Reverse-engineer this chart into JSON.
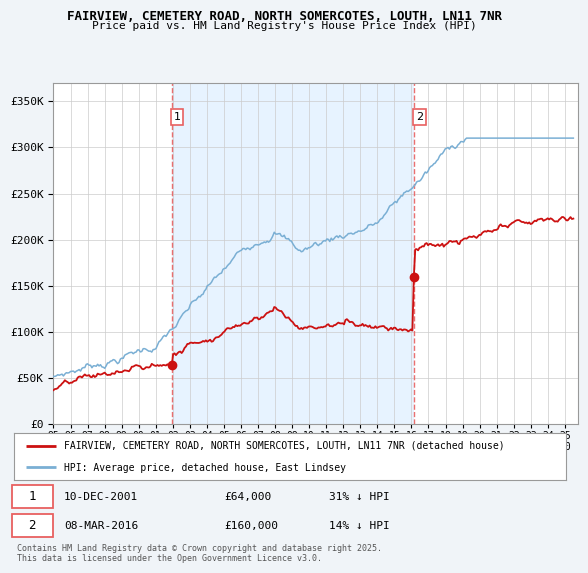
{
  "title1": "FAIRVIEW, CEMETERY ROAD, NORTH SOMERCOTES, LOUTH, LN11 7NR",
  "title2": "Price paid vs. HM Land Registry's House Price Index (HPI)",
  "ylabel_ticks": [
    "£0",
    "£50K",
    "£100K",
    "£150K",
    "£200K",
    "£250K",
    "£300K",
    "£350K"
  ],
  "ytick_values": [
    0,
    50000,
    100000,
    150000,
    200000,
    250000,
    300000,
    350000
  ],
  "ylim": [
    0,
    370000
  ],
  "xlim_start": 1995.0,
  "xlim_end": 2025.8,
  "marker1_x": 2001.94,
  "marker1_y": 64000,
  "marker2_x": 2016.18,
  "marker2_y": 160000,
  "marker1_date": "10-DEC-2001",
  "marker1_price": "£64,000",
  "marker1_hpi": "31% ↓ HPI",
  "marker2_date": "08-MAR-2016",
  "marker2_price": "£160,000",
  "marker2_hpi": "14% ↓ HPI",
  "hpi_color": "#7aafd4",
  "price_color": "#cc1111",
  "dashed_color": "#e86060",
  "shade_color": "#ddeeff",
  "legend_label1": "FAIRVIEW, CEMETERY ROAD, NORTH SOMERCOTES, LOUTH, LN11 7NR (detached house)",
  "legend_label2": "HPI: Average price, detached house, East Lindsey",
  "footer": "Contains HM Land Registry data © Crown copyright and database right 2025.\nThis data is licensed under the Open Government Licence v3.0.",
  "bg_color": "#f0f4f8",
  "plot_bg": "#ffffff"
}
